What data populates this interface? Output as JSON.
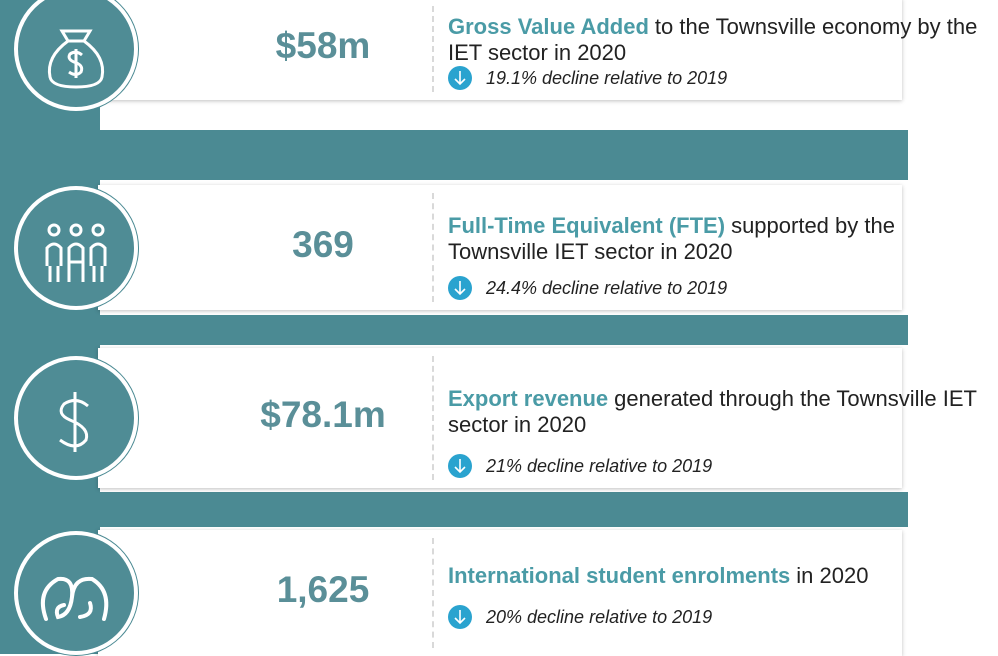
{
  "items": [
    {
      "value": "$58m",
      "headline_bold": "Gross Value Added",
      "headline_rest": "to the Townsville economy by the IET sector in 2020",
      "change": "19.1% decline relative to 2019"
    },
    {
      "value": "369",
      "headline_bold": "Full-Time Equivalent (FTE)",
      "headline_rest": "supported by the Townsville IET sector in 2020",
      "change": "24.4% decline relative to 2019"
    },
    {
      "value": "$78.1m",
      "headline_bold": "Export revenue",
      "headline_rest": "generated through the Townsville IET sector in 2020",
      "change": "21% decline relative to 2019"
    },
    {
      "value": "1,625",
      "headline_bold": "International student enrolments",
      "headline_rest": "in 2020",
      "change": "20% decline relative to 2019"
    }
  ]
}
